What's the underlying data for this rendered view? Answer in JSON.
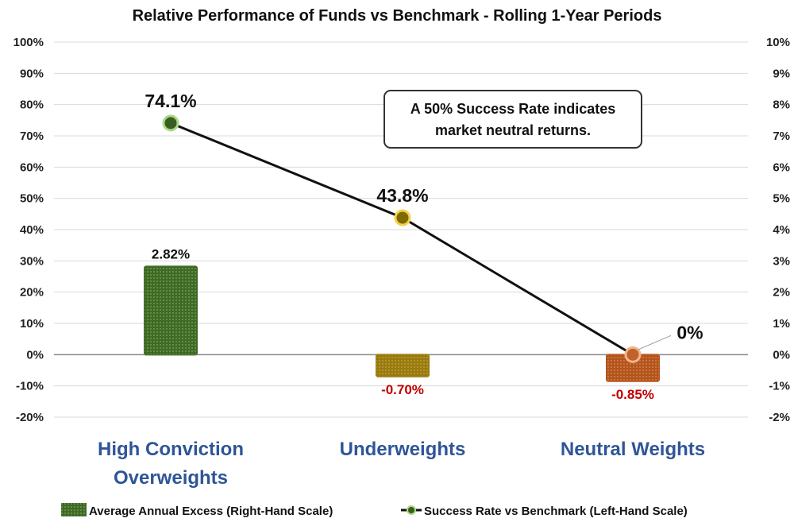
{
  "chart_data": {
    "type": "bar+line",
    "title": "Relative Performance of Funds vs Benchmark - Rolling 1-Year Periods",
    "categories": [
      "High Conviction Overweights",
      "Underweights",
      "Neutral Weights"
    ],
    "category_lines": [
      [
        "High Conviction",
        "Overweights"
      ],
      [
        "Underweights"
      ],
      [
        "Neutral Weights"
      ]
    ],
    "left_axis": {
      "ylim": [
        -20,
        100
      ],
      "ticks": [
        "100%",
        "90%",
        "80%",
        "70%",
        "60%",
        "50%",
        "40%",
        "30%",
        "20%",
        "10%",
        "0%",
        "-10%",
        "-20%"
      ]
    },
    "right_axis": {
      "ylim": [
        -2,
        10
      ],
      "ticks": [
        "10%",
        "9%",
        "8%",
        "7%",
        "6%",
        "5%",
        "4%",
        "3%",
        "2%",
        "1%",
        "0%",
        "-1%",
        "-2%"
      ]
    },
    "grid": true,
    "legend_position": "bottom",
    "series": [
      {
        "name": "Average Annual Excess (Right-Hand Scale)",
        "type": "bar",
        "axis": "right",
        "values": [
          2.82,
          -0.7,
          -0.85
        ],
        "labels": [
          "2.82%",
          "-0.70%",
          "-0.85%"
        ],
        "colors": [
          "#3d6b22",
          "#9a7a0a",
          "#b5541a"
        ]
      },
      {
        "name": "Success Rate vs Benchmark (Left-Hand Scale)",
        "type": "line",
        "axis": "left",
        "values": [
          74.1,
          43.8,
          0
        ],
        "labels": [
          "74.1%",
          "43.8%",
          "0%"
        ],
        "marker_colors": [
          "#3a5e1f",
          "#7f6a00",
          "#c0622a"
        ]
      }
    ],
    "annotation": [
      "A 50% Success Rate indicates",
      "market neutral returns."
    ]
  }
}
